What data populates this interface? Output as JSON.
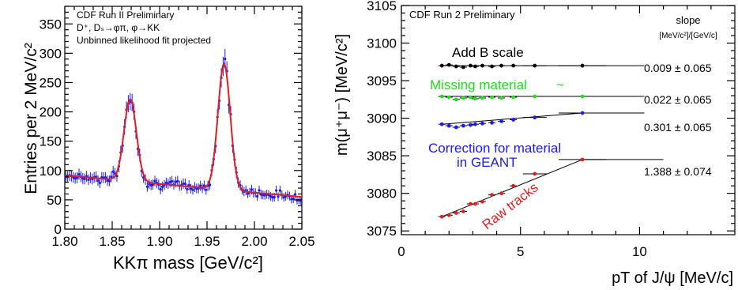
{
  "chart_data": [
    {
      "type": "scatter",
      "annotation_lines": [
        "CDF Run II Preliminary",
        "D⁺, Dₛ→φπ, φ→KK",
        "Unbinned likelihood fit projected"
      ],
      "xlabel": "KKπ mass [GeV/c²]",
      "ylabel": "Entries per 2 MeV/c²",
      "xlim": [
        1.8,
        2.05
      ],
      "ylim": [
        0,
        380
      ],
      "xticks": [
        "1.80",
        "1.85",
        "1.90",
        "1.95",
        "2.00",
        "2.05"
      ],
      "yticks": [
        "0",
        "50",
        "100",
        "150",
        "200",
        "250",
        "300",
        "350"
      ],
      "data_color": "#1a1aff",
      "fit_color": "#e02020",
      "fit": {
        "background": {
          "at_1_80": 92,
          "at_2_05": 55
        },
        "peaks": [
          {
            "mass": 1.869,
            "height": 140,
            "sigma": 0.0065
          },
          {
            "mass": 1.968,
            "height": 215,
            "sigma": 0.0065
          }
        ]
      }
    },
    {
      "type": "scatter",
      "annotation": "CDF Run 2 Preliminary",
      "slope_header": "slope",
      "slope_unit": "[MeV/c²]/[GeV/c]",
      "xlabel": "pT of J/ψ [MeV/c]",
      "ylabel": "m(μ⁺μ⁻) [MeV/c²]",
      "xlim": [
        0,
        14
      ],
      "ylim": [
        3074.5,
        3105
      ],
      "xticks": [
        "0",
        "5",
        "10"
      ],
      "yticks": [
        "3075",
        "3080",
        "3085",
        "3090",
        "3095",
        "3100",
        "3105"
      ],
      "series": [
        {
          "name": "Add B scale",
          "color": "#000000",
          "slope": "0.009 ± 0.065",
          "x": [
            1.7,
            2.0,
            2.3,
            2.6,
            2.9,
            3.1,
            3.4,
            3.8,
            4.2,
            4.7,
            5.6,
            7.6
          ],
          "y": [
            3097.0,
            3097.1,
            3096.9,
            3096.8,
            3097.0,
            3096.9,
            3097.0,
            3096.9,
            3097.0,
            3097.0,
            3097.0,
            3097.0
          ]
        },
        {
          "name": "Missing material",
          "color": "#22dd22",
          "slope": "0.022 ± 0.065",
          "x": [
            1.7,
            2.0,
            2.3,
            2.6,
            2.9,
            3.1,
            3.4,
            3.8,
            4.2,
            4.7,
            5.6,
            7.6
          ],
          "y": [
            3092.9,
            3092.8,
            3092.5,
            3092.7,
            3092.8,
            3092.6,
            3092.7,
            3092.8,
            3092.7,
            3092.8,
            3092.9,
            3092.9
          ]
        },
        {
          "name": "Correction for material in GEANT",
          "color": "#1a1aff",
          "slope": "0.301 ± 0.065",
          "x": [
            1.7,
            2.0,
            2.3,
            2.6,
            2.9,
            3.1,
            3.4,
            3.8,
            4.2,
            4.7,
            5.6,
            7.6
          ],
          "y": [
            3089.2,
            3089.0,
            3088.8,
            3089.0,
            3089.1,
            3089.2,
            3089.3,
            3089.4,
            3089.6,
            3089.8,
            3090.1,
            3090.7
          ]
        },
        {
          "name": "Raw tracks",
          "color": "#e02020",
          "slope": "1.388 ± 0.074",
          "x": [
            1.7,
            2.0,
            2.3,
            2.6,
            2.9,
            3.1,
            3.4,
            3.8,
            4.2,
            4.7,
            5.6,
            7.6
          ],
          "y": [
            3076.9,
            3077.1,
            3077.4,
            3077.6,
            3078.6,
            3078.6,
            3078.9,
            3079.8,
            3080.0,
            3081.0,
            3082.6,
            3084.5
          ]
        }
      ],
      "missing_material_marker": "~"
    }
  ]
}
